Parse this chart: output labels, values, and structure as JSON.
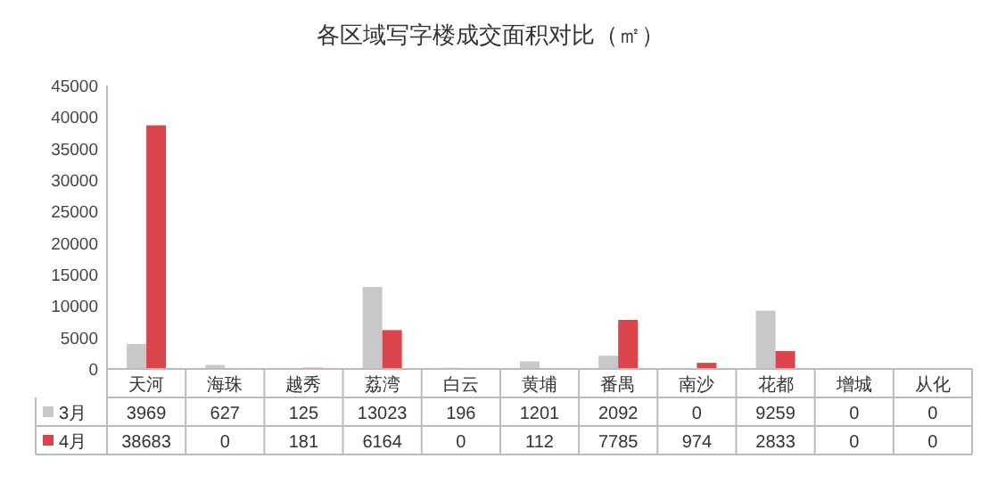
{
  "chart_data": {
    "type": "bar",
    "title": "各区域写字楼成交面积对比（㎡）",
    "categories": [
      "天河",
      "海珠",
      "越秀",
      "荔湾",
      "白云",
      "黄埔",
      "番禺",
      "南沙",
      "花都",
      "增城",
      "从化"
    ],
    "series": [
      {
        "name": "3月",
        "color": "#c8c8c8",
        "values": [
          3969,
          627,
          125,
          13023,
          196,
          1201,
          2092,
          0,
          9259,
          0,
          0
        ]
      },
      {
        "name": "4月",
        "color": "#d9454a",
        "values": [
          38683,
          0,
          181,
          6164,
          0,
          112,
          7785,
          974,
          2833,
          0,
          0
        ]
      }
    ],
    "ylim": [
      0,
      45000
    ],
    "yticks": [
      0,
      5000,
      10000,
      15000,
      20000,
      25000,
      30000,
      35000,
      40000,
      45000
    ],
    "data_labels": true,
    "legend": "bottom"
  }
}
